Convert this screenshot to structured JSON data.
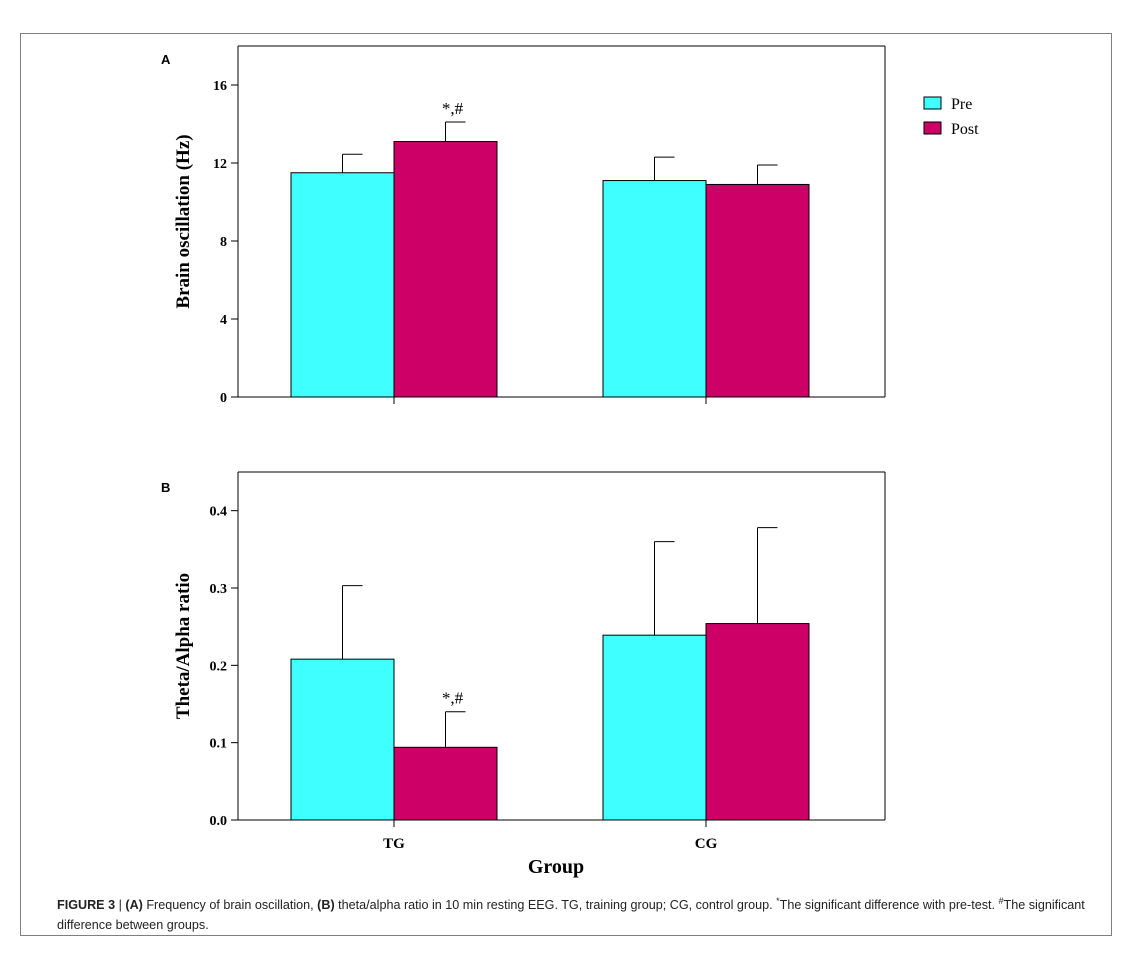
{
  "legend": [
    {
      "label": "Pre",
      "color": "#40FFFF"
    },
    {
      "label": "Post",
      "color": "#CC0066"
    }
  ],
  "chart_data": [
    {
      "type": "bar",
      "panel_label": "A",
      "ylabel": "Brain oscillation (Hz)",
      "ylim": [
        0,
        18
      ],
      "yticks": [
        0,
        4,
        8,
        12,
        16
      ],
      "ytick_labels": [
        "0",
        "4",
        "8",
        "12",
        "16"
      ],
      "categories": [
        "TG",
        "CG"
      ],
      "show_xtick_labels": false,
      "series": [
        {
          "name": "Pre",
          "color": "#40FFFF",
          "values": [
            11.5,
            11.1
          ],
          "errors": [
            0.95,
            1.2
          ]
        },
        {
          "name": "Post",
          "color": "#CC0066",
          "values": [
            13.1,
            10.9
          ],
          "errors": [
            1.0,
            1.0
          ]
        }
      ],
      "annotations": [
        {
          "category": 0,
          "series": 1,
          "text": "*,#"
        }
      ],
      "legend_position": "right"
    },
    {
      "type": "bar",
      "panel_label": "B",
      "ylabel": "Theta/Alpha ratio",
      "xlabel": "Group",
      "ylim": [
        0,
        0.45
      ],
      "yticks": [
        0,
        0.1,
        0.2,
        0.3,
        0.4
      ],
      "ytick_labels": [
        "0.0",
        "0.1",
        "0.2",
        "0.3",
        "0.4"
      ],
      "categories": [
        "TG",
        "CG"
      ],
      "show_xtick_labels": true,
      "series": [
        {
          "name": "Pre",
          "color": "#40FFFF",
          "values": [
            0.208,
            0.239
          ],
          "errors": [
            0.095,
            0.121
          ]
        },
        {
          "name": "Post",
          "color": "#CC0066",
          "values": [
            0.094,
            0.254
          ],
          "errors": [
            0.046,
            0.124
          ]
        }
      ],
      "annotations": [
        {
          "category": 0,
          "series": 1,
          "text": "*,#"
        }
      ]
    }
  ],
  "caption": {
    "figure_label": "FIGURE 3",
    "separator": " | ",
    "part_a_label": "(A)",
    "part_a_text": " Frequency of brain oscillation, ",
    "part_b_label": "(B)",
    "part_b_text": " theta/alpha ratio in 10 min resting EEG. TG, training group; CG, control group. ",
    "star_mark": "*",
    "star_text": "The significant difference with pre-test. ",
    "hash_mark": "#",
    "hash_text": "The significant difference between groups."
  }
}
